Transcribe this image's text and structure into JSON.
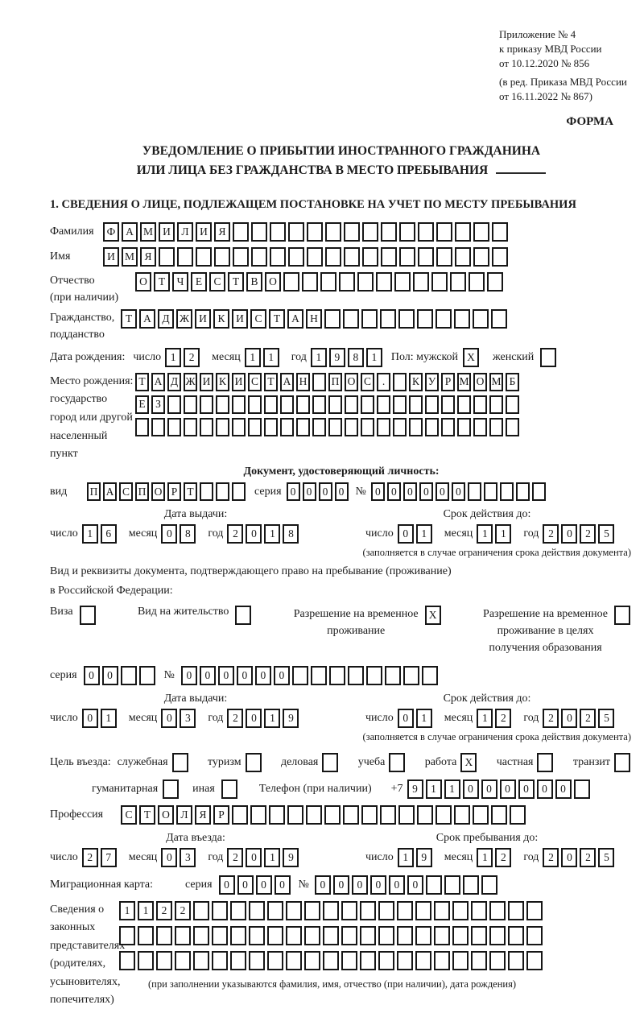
{
  "colors": {
    "ink": "#1a1a1a",
    "paper": "#ffffff"
  },
  "header": {
    "annex_lines": [
      "Приложение № 4",
      "к приказу МВД России",
      "от 10.12.2020 № 856"
    ],
    "annex_note_lines": [
      "(в ред. Приказа МВД России",
      "от 16.11.2022 № 867)"
    ],
    "form_label": "ФОРМА",
    "title_lines": [
      "УВЕДОМЛЕНИЕ О ПРИБЫТИИ ИНОСТРАННОГО ГРАЖДАНИНА",
      "ИЛИ ЛИЦА БЕЗ ГРАЖДАНСТВА В МЕСТО ПРЕБЫВАНИЯ"
    ],
    "section1_title": "1. СВЕДЕНИЯ О ЛИЦЕ, ПОДЛЕЖАЩЕМ ПОСТАНОВКЕ НА УЧЕТ ПО МЕСТУ ПРЕБЫВАНИЯ"
  },
  "labels": {
    "day": "число",
    "month": "месяц",
    "year": "год",
    "seriya": "серия",
    "num": "№",
    "issue_date": "Дата выдачи:",
    "valid_until": "Срок действия до:",
    "restriction_note": "(заполняется в случае ограничения срока действия документа)"
  },
  "person": {
    "surname": {
      "label": "Фамилия",
      "chars": "ФАМИЛИЯ",
      "len": 22
    },
    "given_name": {
      "label": "Имя",
      "chars": "ИМЯ",
      "len": 22
    },
    "patronymic": {
      "label": "Отчество",
      "label2": "(при наличии)",
      "chars": "ОТЧЕСТВО",
      "len": 20
    },
    "citizenship": {
      "label": "Гражданство,",
      "label2": "подданство",
      "chars": "ТАДЖИКИСТАН",
      "len": 21
    },
    "birth_date": {
      "label": "Дата рождения:",
      "day": {
        "chars": "12",
        "len": 2
      },
      "month": {
        "chars": "11",
        "len": 2
      },
      "year": {
        "chars": "1981",
        "len": 4
      }
    },
    "sex": {
      "label": "Пол: мужской",
      "male": {
        "chars": "X",
        "len": 1
      },
      "label2": "женский",
      "female": {
        "chars": "",
        "len": 1
      }
    },
    "birth_place": {
      "label": "Место рождения:",
      "sublabels": [
        "государство",
        "город или другой",
        "населенный пункт"
      ],
      "row1": {
        "chars": "ТАДЖИКИСТАН ПОС. КУРМОМБ",
        "len": 24
      },
      "row2": {
        "chars": "ЕЗ",
        "len": 24
      },
      "row3": {
        "chars": "",
        "len": 24
      }
    }
  },
  "identity_doc": {
    "header": "Документ, удостоверяющий личность:",
    "type_label": "вид",
    "type": {
      "chars": "ПАСПОРТ",
      "len": 10
    },
    "seriya": {
      "chars": "0000",
      "len": 4
    },
    "number": {
      "chars": "000000",
      "len": 11
    },
    "issue": {
      "day": {
        "chars": "16",
        "len": 2
      },
      "month": {
        "chars": "08",
        "len": 2
      },
      "year": {
        "chars": "2018",
        "len": 4
      }
    },
    "valid": {
      "day": {
        "chars": "01",
        "len": 2
      },
      "month": {
        "chars": "11",
        "len": 2
      },
      "year": {
        "chars": "2025",
        "len": 4
      }
    }
  },
  "residence_doc": {
    "line1": "Вид и реквизиты документа, подтверждающего право на пребывание (проживание)",
    "line2": "в Российской Федерации:",
    "visa": {
      "label": "Виза",
      "box": {
        "chars": "",
        "len": 1
      }
    },
    "residence_permit": {
      "label": "Вид на жительство",
      "box": {
        "chars": "",
        "len": 1
      }
    },
    "temp_permit": {
      "lines": [
        "Разрешение на временное",
        "проживание"
      ],
      "box": {
        "chars": "X",
        "len": 1
      }
    },
    "edu_permit": {
      "lines": [
        "Разрешение на временное",
        "проживание в целях",
        "получения образования"
      ],
      "box": {
        "chars": "",
        "len": 1
      }
    },
    "seriya": {
      "chars": "00",
      "len": 4
    },
    "number": {
      "chars": "000000",
      "len": 14
    },
    "issue": {
      "day": {
        "chars": "01",
        "len": 2
      },
      "month": {
        "chars": "03",
        "len": 2
      },
      "year": {
        "chars": "2019",
        "len": 4
      }
    },
    "valid": {
      "day": {
        "chars": "01",
        "len": 2
      },
      "month": {
        "chars": "12",
        "len": 2
      },
      "year": {
        "chars": "2025",
        "len": 4
      }
    }
  },
  "visit": {
    "purpose_label": "Цель въезда:",
    "options": [
      {
        "label": "служебная",
        "box": {
          "chars": "",
          "len": 1
        }
      },
      {
        "label": "туризм",
        "box": {
          "chars": "",
          "len": 1
        }
      },
      {
        "label": "деловая",
        "box": {
          "chars": "",
          "len": 1
        }
      },
      {
        "label": "учеба",
        "box": {
          "chars": "",
          "len": 1
        }
      },
      {
        "label": "работа",
        "box": {
          "chars": "X",
          "len": 1
        }
      },
      {
        "label": "частная",
        "box": {
          "chars": "",
          "len": 1
        }
      },
      {
        "label": "транзит",
        "box": {
          "chars": "",
          "len": 1
        }
      },
      {
        "label": "гуманитарная",
        "box": {
          "chars": "",
          "len": 1
        }
      },
      {
        "label": "иная",
        "box": {
          "chars": "",
          "len": 1
        }
      }
    ],
    "phone_label": "Телефон (при наличии)",
    "phone_prefix": "+7",
    "phone": {
      "chars": "911000000",
      "len": 10
    },
    "profession": {
      "label": "Профессия",
      "chars": "СТОЛЯР",
      "len": 22
    },
    "entry_label": "Дата въезда:",
    "stay_label": "Срок пребывания до:",
    "entry": {
      "day": {
        "chars": "27",
        "len": 2
      },
      "month": {
        "chars": "03",
        "len": 2
      },
      "year": {
        "chars": "2019",
        "len": 4
      }
    },
    "stay": {
      "day": {
        "chars": "19",
        "len": 2
      },
      "month": {
        "chars": "12",
        "len": 2
      },
      "year": {
        "chars": "2025",
        "len": 4
      }
    }
  },
  "migration_card": {
    "label": "Миграционная карта:",
    "seriya": {
      "chars": "0000",
      "len": 4
    },
    "number": {
      "chars": "000000",
      "len": 10
    }
  },
  "representatives": {
    "label_lines": [
      "Сведения о",
      "законных",
      "представителях",
      "(родителях,",
      "усыновителях,",
      "попечителях)"
    ],
    "row1": {
      "chars": "1122",
      "len": 23
    },
    "row2": {
      "chars": "",
      "len": 23
    },
    "row3": {
      "chars": "",
      "len": 23
    },
    "note": "(при заполнении указываются фамилия, имя, отчество (при наличии), дата рождения)"
  }
}
